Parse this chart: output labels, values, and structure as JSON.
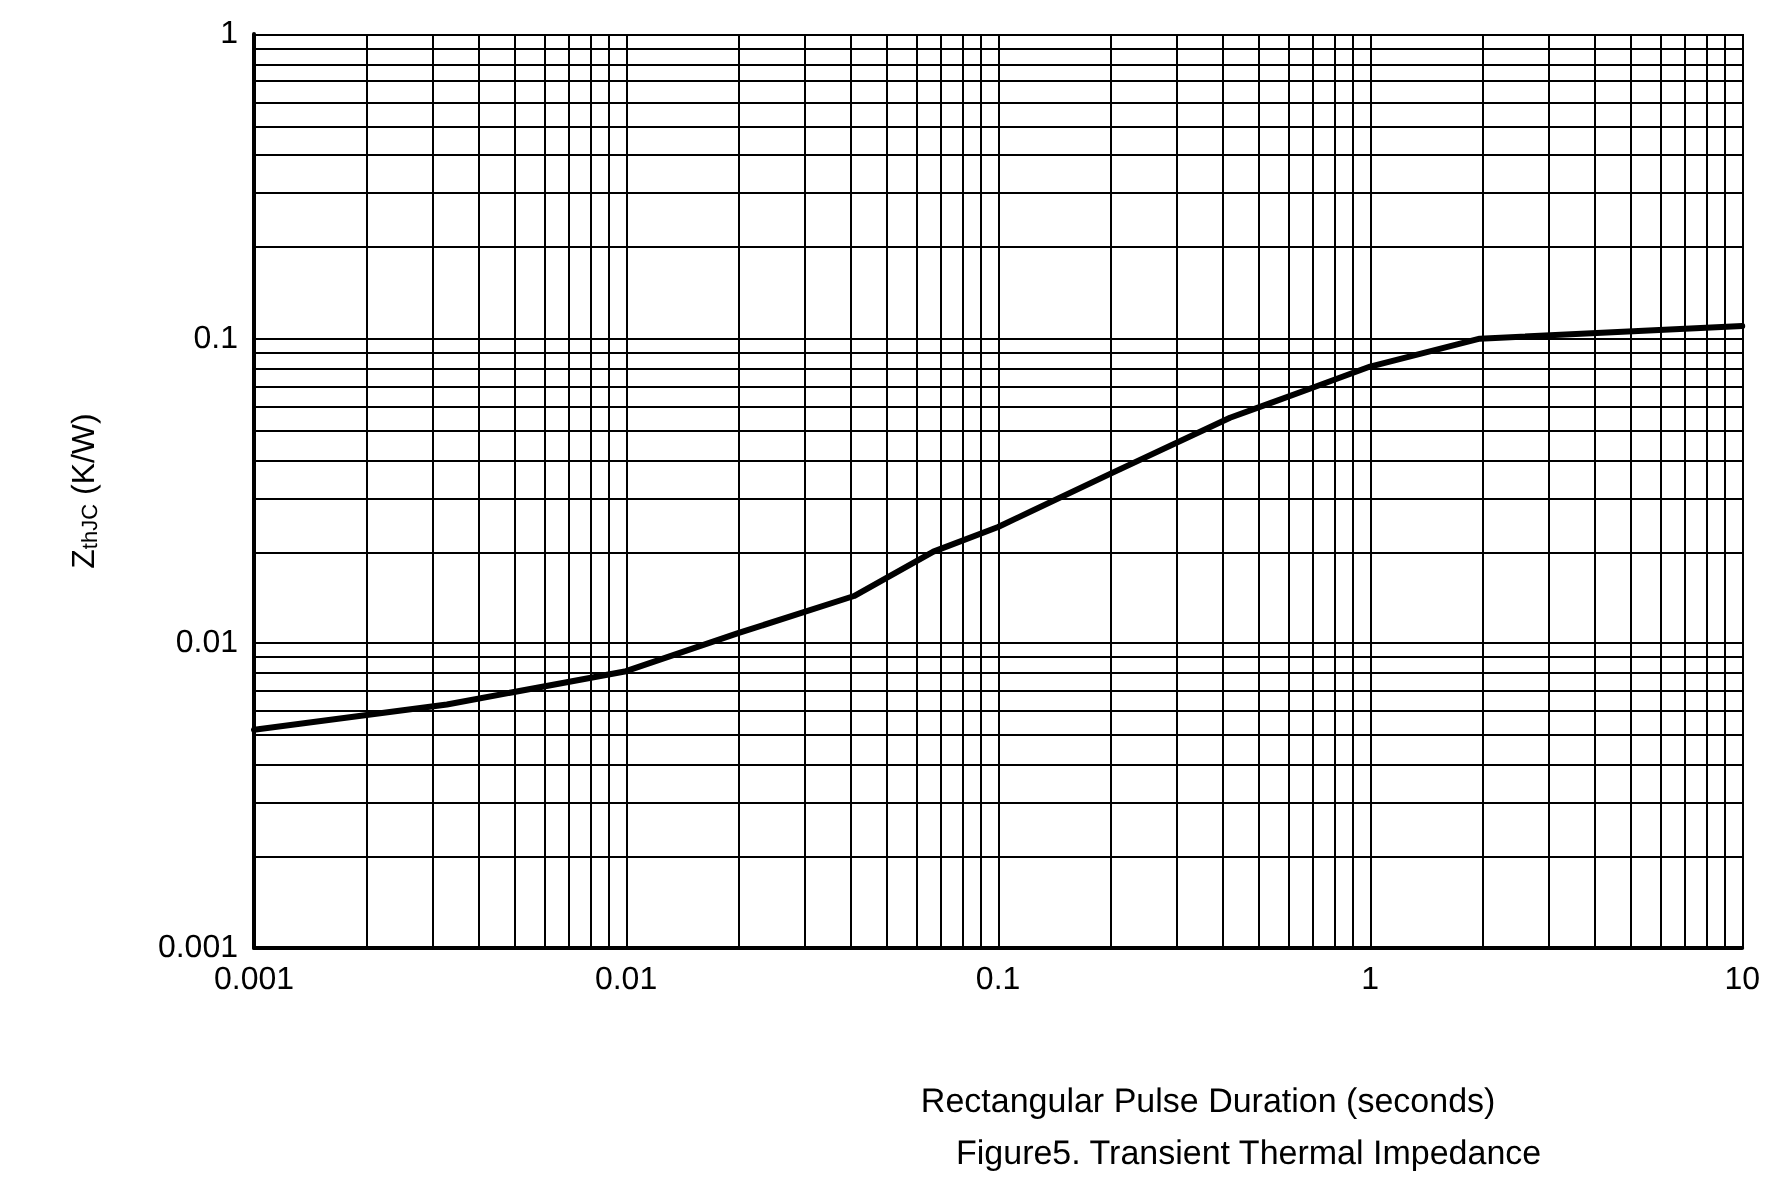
{
  "chart_data": {
    "type": "line",
    "xlabel": "Rectangular Pulse Duration (seconds)",
    "ylabel": "Z$_{thJC}$ (K/W)",
    "annotations": [
      "Figure5. Transient Thermal Impedance"
    ],
    "log": "xy",
    "grid": true,
    "marker": "none",
    "line_style": "solid",
    "x": [
      0.001,
      0.0033,
      0.01,
      0.02,
      0.041,
      0.067,
      0.1,
      0.2,
      0.42,
      0.7,
      1.0,
      1.97,
      10
    ],
    "series": [
      {
        "color": "#000000",
        "values": [
          0.0052,
          0.0063,
          0.0081,
          0.0108,
          0.0143,
          0.02,
          0.0241,
          0.036,
          0.055,
          0.069,
          0.081,
          0.1,
          0.11
        ]
      }
    ],
    "xlim": [
      0.001,
      10
    ],
    "ylim": [
      0.001,
      1
    ],
    "xticks": [
      0.001,
      {
        "value": 0.002,
        "label": null
      },
      {
        "value": 0.003,
        "label": null
      },
      {
        "value": 0.004,
        "label": null
      },
      {
        "value": 0.005,
        "label": null
      },
      {
        "value": 0.006,
        "label": null
      },
      {
        "value": 0.007,
        "label": null
      },
      {
        "value": 0.008,
        "label": null
      },
      {
        "value": 0.009,
        "label": null
      },
      0.01,
      {
        "value": 0.02,
        "label": null
      },
      {
        "value": 0.03,
        "label": null
      },
      {
        "value": 0.04,
        "label": null
      },
      {
        "value": 0.05,
        "label": null
      },
      {
        "value": 0.06,
        "label": null
      },
      {
        "value": 0.07,
        "label": null
      },
      {
        "value": 0.08,
        "label": null
      },
      {
        "value": 0.09,
        "label": null
      },
      0.1,
      {
        "value": 0.2,
        "label": null
      },
      {
        "value": 0.3,
        "label": null
      },
      {
        "value": 0.4,
        "label": null
      },
      {
        "value": 0.5,
        "label": null
      },
      {
        "value": 0.6,
        "label": null
      },
      {
        "value": 0.7,
        "label": null
      },
      {
        "value": 0.8,
        "label": null
      },
      {
        "value": 0.9,
        "label": null
      },
      1,
      {
        "value": 2,
        "label": null
      },
      {
        "value": 3,
        "label": null
      },
      {
        "value": 4,
        "label": null
      },
      {
        "value": 5,
        "label": null
      },
      {
        "value": 6,
        "label": null
      },
      {
        "value": 7,
        "label": null
      },
      {
        "value": 8,
        "label": null
      },
      {
        "value": 9,
        "label": null
      },
      10
    ],
    "yticks": [
      0.001,
      {
        "value": 0.002,
        "label": null
      },
      {
        "value": 0.003,
        "label": null
      },
      {
        "value": 0.004,
        "label": null
      },
      {
        "value": 0.005,
        "label": null
      },
      {
        "value": 0.006,
        "label": null
      },
      {
        "value": 0.007,
        "label": null
      },
      {
        "value": 0.008,
        "label": null
      },
      {
        "value": 0.009,
        "label": null
      },
      0.01,
      {
        "value": 0.02,
        "label": null
      },
      {
        "value": 0.03,
        "label": null
      },
      {
        "value": 0.04,
        "label": null
      },
      {
        "value": 0.05,
        "label": null
      },
      {
        "value": 0.06,
        "label": null
      },
      {
        "value": 0.07,
        "label": null
      },
      {
        "value": 0.08,
        "label": null
      },
      {
        "value": 0.09,
        "label": null
      },
      0.1,
      {
        "value": 0.2,
        "label": null
      },
      {
        "value": 0.3,
        "label": null
      },
      {
        "value": 0.4,
        "label": null
      },
      {
        "value": 0.5,
        "label": null
      },
      {
        "value": 0.6,
        "label": null
      },
      {
        "value": 0.7,
        "label": null
      },
      {
        "value": 0.8,
        "label": null
      },
      {
        "value": 0.9,
        "label": null
      },
      1
    ]
  }
}
